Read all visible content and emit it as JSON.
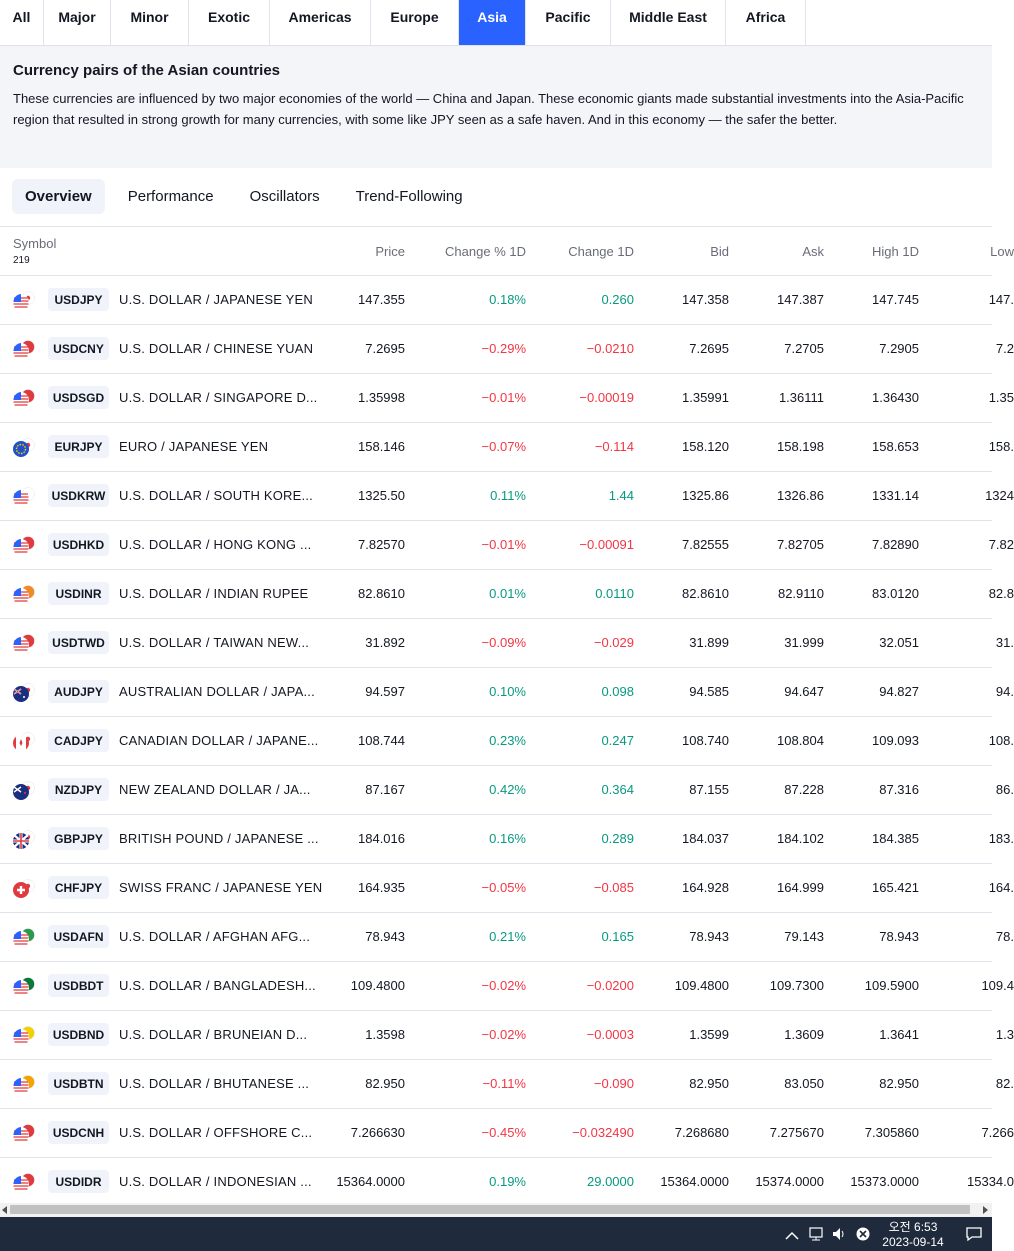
{
  "region_tabs": [
    "All",
    "Major",
    "Minor",
    "Exotic",
    "Americas",
    "Europe",
    "Asia",
    "Pacific",
    "Middle East",
    "Africa"
  ],
  "active_region": "Asia",
  "info": {
    "title": "Currency pairs of the Asian countries",
    "description": "These currencies are influenced by two major economies of the world — China and Japan. These economic giants made substantial investments into the Asia-Pacific region that resulted in strong growth for many currencies, with some like JPY seen as a safe haven. And in this economy — the safer the better."
  },
  "view_tabs": [
    "Overview",
    "Performance",
    "Oscillators",
    "Trend-Following"
  ],
  "active_view": "Overview",
  "table": {
    "symbol_header": "Symbol",
    "symbol_count": "219",
    "columns": [
      "Price",
      "Change % 1D",
      "Change 1D",
      "Bid",
      "Ask",
      "High 1D",
      "Low"
    ],
    "rows": [
      {
        "ticker": "USDJPY",
        "desc": "U.S. DOLLAR / JAPANESE YEN",
        "price": "147.355",
        "chg_pct": "0.18%",
        "chg": "0.260",
        "bid": "147.358",
        "ask": "147.387",
        "high": "147.745",
        "low": "147.",
        "dir": "pos",
        "flag": "us-jp"
      },
      {
        "ticker": "USDCNY",
        "desc": "U.S. DOLLAR / CHINESE YUAN",
        "price": "7.2695",
        "chg_pct": "−0.29%",
        "chg": "−0.0210",
        "bid": "7.2695",
        "ask": "7.2705",
        "high": "7.2905",
        "low": "7.2",
        "dir": "neg",
        "flag": "us-cn"
      },
      {
        "ticker": "USDSGD",
        "desc": "U.S. DOLLAR / SINGAPORE D...",
        "price": "1.35998",
        "chg_pct": "−0.01%",
        "chg": "−0.00019",
        "bid": "1.35991",
        "ask": "1.36111",
        "high": "1.36430",
        "low": "1.35",
        "dir": "neg",
        "flag": "us-sg"
      },
      {
        "ticker": "EURJPY",
        "desc": "EURO / JAPANESE YEN",
        "price": "158.146",
        "chg_pct": "−0.07%",
        "chg": "−0.114",
        "bid": "158.120",
        "ask": "158.198",
        "high": "158.653",
        "low": "158.",
        "dir": "neg",
        "flag": "eu-jp"
      },
      {
        "ticker": "USDKRW",
        "desc": "U.S. DOLLAR / SOUTH KORE...",
        "price": "1325.50",
        "chg_pct": "0.11%",
        "chg": "1.44",
        "bid": "1325.86",
        "ask": "1326.86",
        "high": "1331.14",
        "low": "1324",
        "dir": "pos",
        "flag": "us-kr"
      },
      {
        "ticker": "USDHKD",
        "desc": "U.S. DOLLAR / HONG KONG ...",
        "price": "7.82570",
        "chg_pct": "−0.01%",
        "chg": "−0.00091",
        "bid": "7.82555",
        "ask": "7.82705",
        "high": "7.82890",
        "low": "7.82",
        "dir": "neg",
        "flag": "us-hk"
      },
      {
        "ticker": "USDINR",
        "desc": "U.S. DOLLAR / INDIAN RUPEE",
        "price": "82.8610",
        "chg_pct": "0.01%",
        "chg": "0.0110",
        "bid": "82.8610",
        "ask": "82.9110",
        "high": "83.0120",
        "low": "82.8",
        "dir": "pos",
        "flag": "us-in"
      },
      {
        "ticker": "USDTWD",
        "desc": "U.S. DOLLAR / TAIWAN NEW...",
        "price": "31.892",
        "chg_pct": "−0.09%",
        "chg": "−0.029",
        "bid": "31.899",
        "ask": "31.999",
        "high": "32.051",
        "low": "31.",
        "dir": "neg",
        "flag": "us-tw"
      },
      {
        "ticker": "AUDJPY",
        "desc": "AUSTRALIAN DOLLAR / JAPA...",
        "price": "94.597",
        "chg_pct": "0.10%",
        "chg": "0.098",
        "bid": "94.585",
        "ask": "94.647",
        "high": "94.827",
        "low": "94.",
        "dir": "pos",
        "flag": "au-jp"
      },
      {
        "ticker": "CADJPY",
        "desc": "CANADIAN DOLLAR / JAPANE...",
        "price": "108.744",
        "chg_pct": "0.23%",
        "chg": "0.247",
        "bid": "108.740",
        "ask": "108.804",
        "high": "109.093",
        "low": "108.",
        "dir": "pos",
        "flag": "ca-jp"
      },
      {
        "ticker": "NZDJPY",
        "desc": "NEW ZEALAND DOLLAR / JA...",
        "price": "87.167",
        "chg_pct": "0.42%",
        "chg": "0.364",
        "bid": "87.155",
        "ask": "87.228",
        "high": "87.316",
        "low": "86.",
        "dir": "pos",
        "flag": "nz-jp"
      },
      {
        "ticker": "GBPJPY",
        "desc": "BRITISH POUND / JAPANESE ...",
        "price": "184.016",
        "chg_pct": "0.16%",
        "chg": "0.289",
        "bid": "184.037",
        "ask": "184.102",
        "high": "184.385",
        "low": "183.",
        "dir": "pos",
        "flag": "gb-jp"
      },
      {
        "ticker": "CHFJPY",
        "desc": "SWISS FRANC / JAPANESE YEN",
        "price": "164.935",
        "chg_pct": "−0.05%",
        "chg": "−0.085",
        "bid": "164.928",
        "ask": "164.999",
        "high": "165.421",
        "low": "164.",
        "dir": "neg",
        "flag": "ch-jp"
      },
      {
        "ticker": "USDAFN",
        "desc": "U.S. DOLLAR / AFGHAN AFG...",
        "price": "78.943",
        "chg_pct": "0.21%",
        "chg": "0.165",
        "bid": "78.943",
        "ask": "79.143",
        "high": "78.943",
        "low": "78.",
        "dir": "pos",
        "flag": "us-af"
      },
      {
        "ticker": "USDBDT",
        "desc": "U.S. DOLLAR / BANGLADESH...",
        "price": "109.4800",
        "chg_pct": "−0.02%",
        "chg": "−0.0200",
        "bid": "109.4800",
        "ask": "109.7300",
        "high": "109.5900",
        "low": "109.4",
        "dir": "neg",
        "flag": "us-bd"
      },
      {
        "ticker": "USDBND",
        "desc": "U.S. DOLLAR / BRUNEIAN D...",
        "price": "1.3598",
        "chg_pct": "−0.02%",
        "chg": "−0.0003",
        "bid": "1.3599",
        "ask": "1.3609",
        "high": "1.3641",
        "low": "1.3",
        "dir": "neg",
        "flag": "us-bn"
      },
      {
        "ticker": "USDBTN",
        "desc": "U.S. DOLLAR / BHUTANESE ...",
        "price": "82.950",
        "chg_pct": "−0.11%",
        "chg": "−0.090",
        "bid": "82.950",
        "ask": "83.050",
        "high": "82.950",
        "low": "82.",
        "dir": "neg",
        "flag": "us-bt"
      },
      {
        "ticker": "USDCNH",
        "desc": "U.S. DOLLAR / OFFSHORE C...",
        "price": "7.266630",
        "chg_pct": "−0.45%",
        "chg": "−0.032490",
        "bid": "7.268680",
        "ask": "7.275670",
        "high": "7.305860",
        "low": "7.266",
        "dir": "neg",
        "flag": "us-cn"
      },
      {
        "ticker": "USDIDR",
        "desc": "U.S. DOLLAR / INDONESIAN ...",
        "price": "15364.0000",
        "chg_pct": "0.19%",
        "chg": "29.0000",
        "bid": "15364.0000",
        "ask": "15374.0000",
        "high": "15373.0000",
        "low": "15334.0",
        "dir": "pos",
        "flag": "us-id"
      }
    ]
  },
  "colors": {
    "accent": "#2962ff",
    "positive": "#089981",
    "negative": "#f23645",
    "taskbar": "#1f2b3d"
  },
  "taskbar": {
    "time": "오전 6:53",
    "date": "2023-09-14"
  }
}
